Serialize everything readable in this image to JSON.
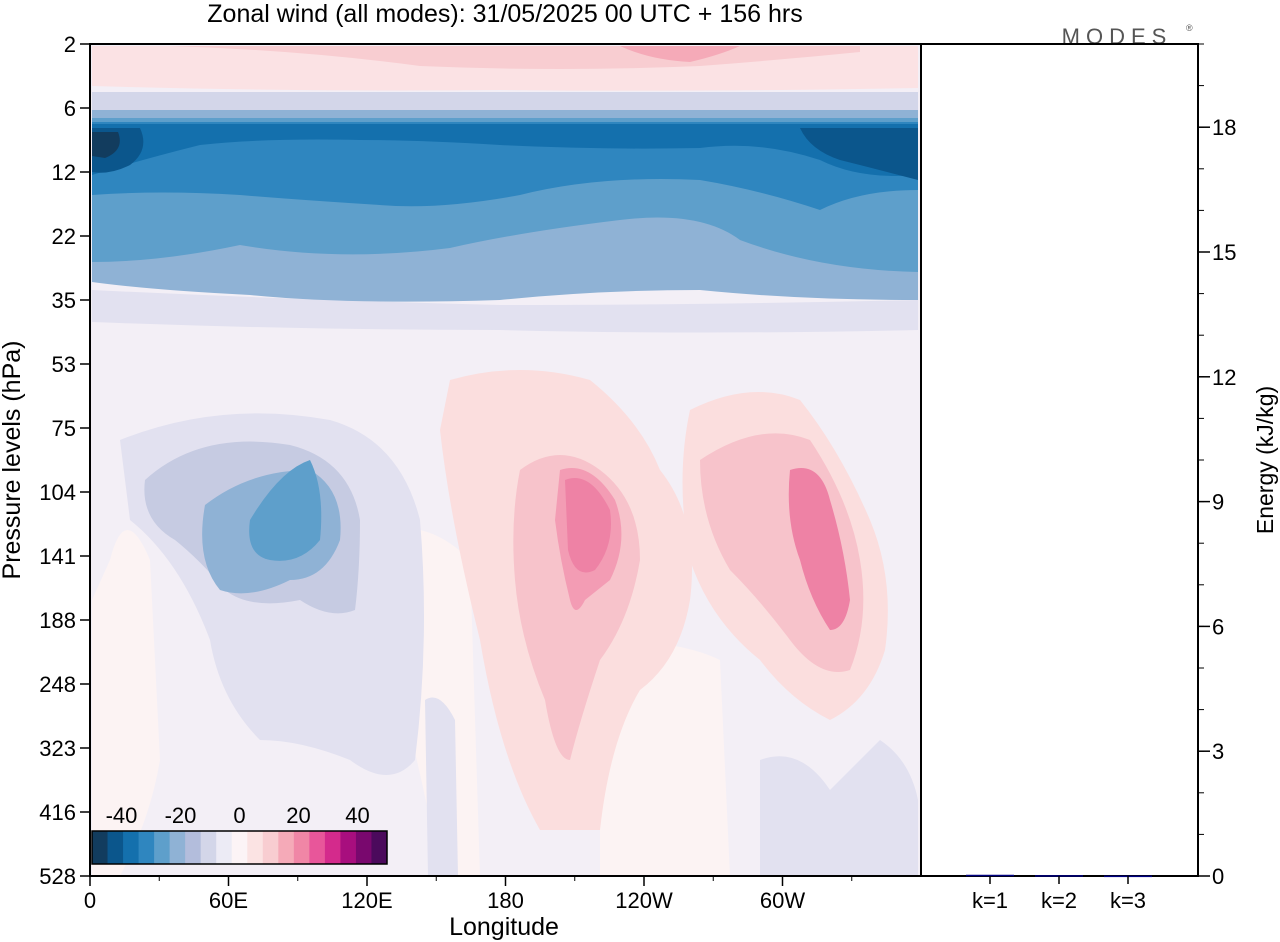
{
  "title": "Zonal wind (all modes):  31/05/2025  00 UTC  + 156 hrs",
  "logo_text": "MODES",
  "logo_mark": "®",
  "chart_data": [
    {
      "type": "heatmap",
      "xlabel": "Longitude",
      "ylabel": "Pressure levels (hPa)",
      "x_ticks": [
        "0",
        "60E",
        "120E",
        "180",
        "120W",
        "60W"
      ],
      "x_tick_positions_deg": [
        0,
        60,
        120,
        180,
        240,
        300
      ],
      "xlim_deg": [
        0,
        360
      ],
      "y_ticks": [
        "2",
        "6",
        "12",
        "22",
        "35",
        "53",
        "75",
        "104",
        "141",
        "188",
        "248",
        "323",
        "416",
        "528"
      ],
      "y_scale": "level index (top = 2 hPa, bottom = 528 hPa)",
      "grid": false,
      "colorbar": {
        "ticks": [
          "-40",
          "-20",
          "0",
          "20",
          "40"
        ],
        "range": [
          -50,
          50
        ],
        "colors": [
          "#123c5e",
          "#0b568c",
          "#1470ad",
          "#2f86bf",
          "#5e9fcb",
          "#8fb2d5",
          "#b3bddc",
          "#d3d6e9",
          "#ecebf5",
          "#fcf4f6",
          "#fbe3e3",
          "#f8cdd1",
          "#f5aab8",
          "#f086a6",
          "#e8569a",
          "#d42a8c",
          "#a80e7e",
          "#79086e",
          "#4b0a5c"
        ]
      },
      "description_values": {
        "stratospheric_easterly_core_min_ms": -44,
        "upper_westerly_max_ms": 16,
        "tropospheric_westerly_max_ms": 22,
        "tropospheric_easterly_min_ms": -20
      }
    },
    {
      "type": "bar",
      "categories": [
        "k=1",
        "k=2",
        "k=3"
      ],
      "values": [
        0.03,
        0.02,
        0.01
      ],
      "ylabel": "Energy (kJ/kg)",
      "ylim": [
        0,
        20
      ],
      "y_ticks": [
        "0",
        "3",
        "6",
        "9",
        "12",
        "15",
        "18"
      ],
      "y_tick_values": [
        0,
        3,
        6,
        9,
        12,
        15,
        18
      ],
      "y_minor_step": 1,
      "bar_color": "#000080"
    }
  ]
}
